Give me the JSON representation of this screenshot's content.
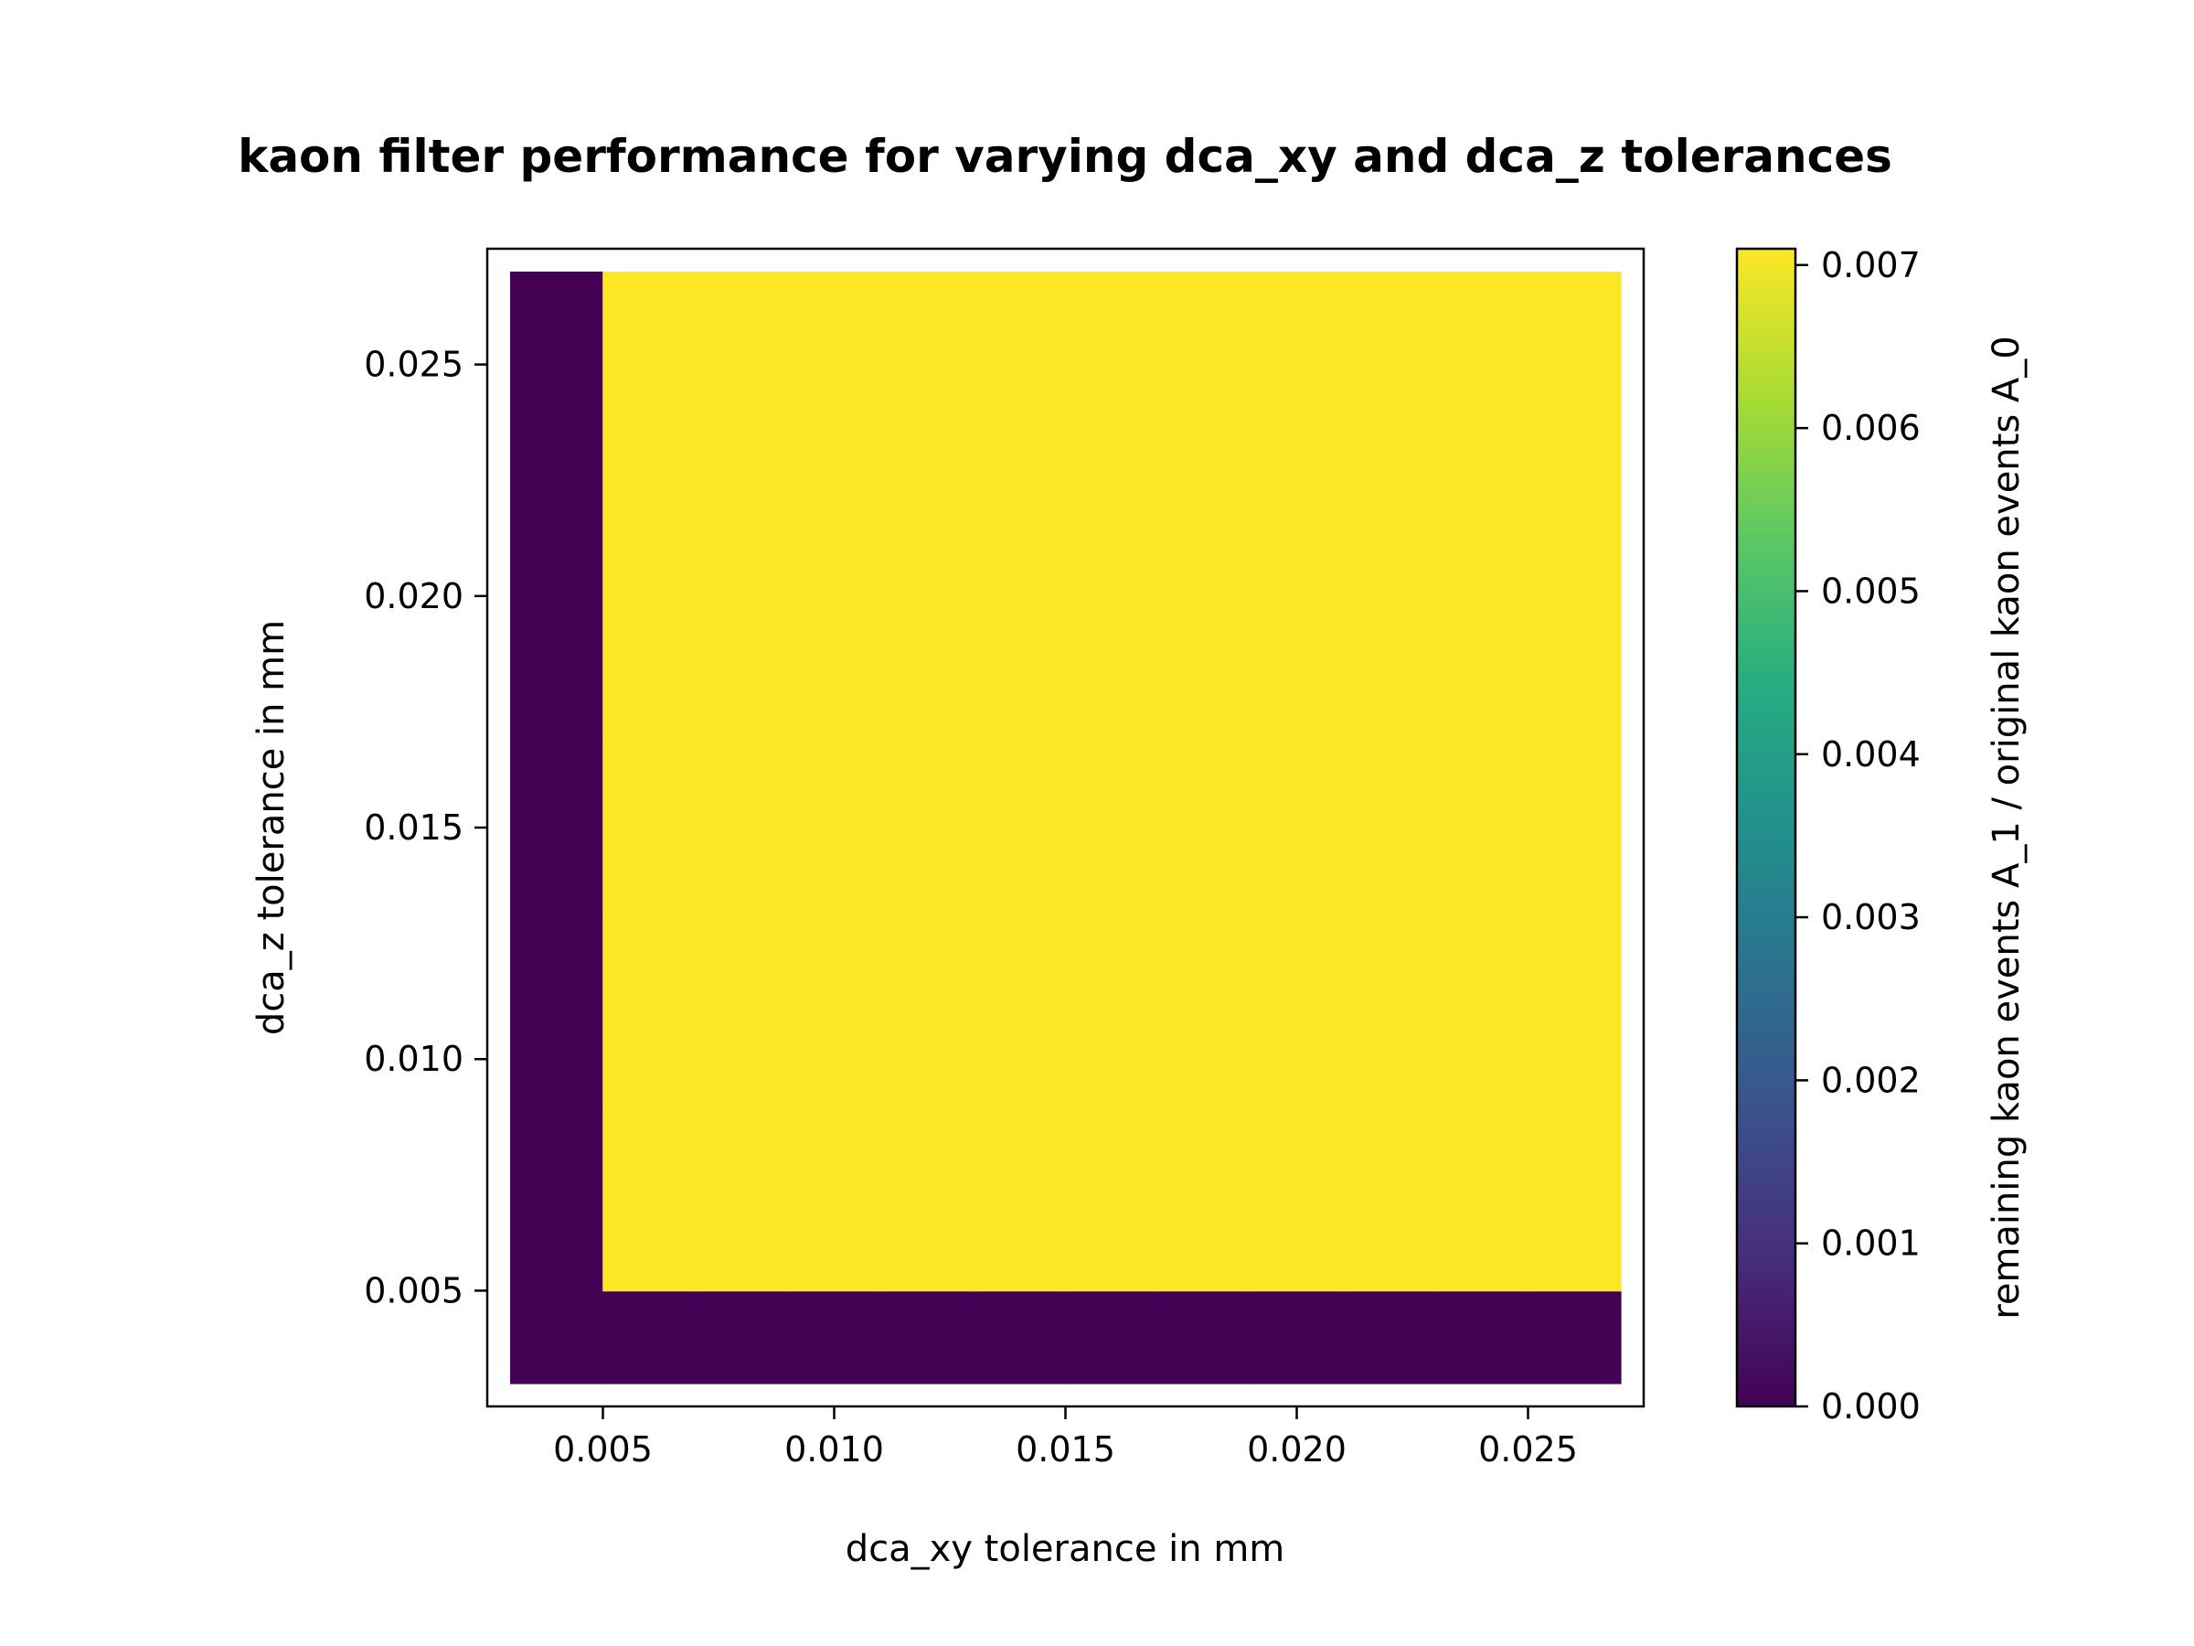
{
  "chart_data": {
    "type": "heatmap",
    "title": "kaon filter performance for varying dca_xy and dca_z tolerances",
    "xlabel": "dca_xy tolerance in mm",
    "ylabel": "dca_z tolerance in mm",
    "colorbar_label": "remaining kaon events A_1 / original kaon events A_0",
    "colormap": "viridis",
    "x_centers": [
      0.004,
      0.006,
      0.008,
      0.01,
      0.012,
      0.014,
      0.016,
      0.018,
      0.02,
      0.022,
      0.024,
      0.026
    ],
    "y_centers": [
      0.004,
      0.006,
      0.008,
      0.01,
      0.012,
      0.014,
      0.016,
      0.018,
      0.02,
      0.022,
      0.024,
      0.026
    ],
    "xlim": [
      0.0025,
      0.0275
    ],
    "ylim": [
      0.0025,
      0.0275
    ],
    "values": [
      [
        0,
        0,
        0,
        0,
        0,
        0,
        0,
        0,
        0,
        0,
        0,
        0
      ],
      [
        0,
        0.0071,
        0.0071,
        0.0071,
        0.0071,
        0.0071,
        0.0071,
        0.0071,
        0.0071,
        0.0071,
        0.0071,
        0.0071
      ],
      [
        0,
        0.0071,
        0.0071,
        0.0071,
        0.0071,
        0.0071,
        0.0071,
        0.0071,
        0.0071,
        0.0071,
        0.0071,
        0.0071
      ],
      [
        0,
        0.0071,
        0.0071,
        0.0071,
        0.0071,
        0.0071,
        0.0071,
        0.0071,
        0.0071,
        0.0071,
        0.0071,
        0.0071
      ],
      [
        0,
        0.0071,
        0.0071,
        0.0071,
        0.0071,
        0.0071,
        0.0071,
        0.0071,
        0.0071,
        0.0071,
        0.0071,
        0.0071
      ],
      [
        0,
        0.0071,
        0.0071,
        0.0071,
        0.0071,
        0.0071,
        0.0071,
        0.0071,
        0.0071,
        0.0071,
        0.0071,
        0.0071
      ],
      [
        0,
        0.0071,
        0.0071,
        0.0071,
        0.0071,
        0.0071,
        0.0071,
        0.0071,
        0.0071,
        0.0071,
        0.0071,
        0.0071
      ],
      [
        0,
        0.0071,
        0.0071,
        0.0071,
        0.0071,
        0.0071,
        0.0071,
        0.0071,
        0.0071,
        0.0071,
        0.0071,
        0.0071
      ],
      [
        0,
        0.0071,
        0.0071,
        0.0071,
        0.0071,
        0.0071,
        0.0071,
        0.0071,
        0.0071,
        0.0071,
        0.0071,
        0.0071
      ],
      [
        0,
        0.0071,
        0.0071,
        0.0071,
        0.0071,
        0.0071,
        0.0071,
        0.0071,
        0.0071,
        0.0071,
        0.0071,
        0.0071
      ],
      [
        0,
        0.0071,
        0.0071,
        0.0071,
        0.0071,
        0.0071,
        0.0071,
        0.0071,
        0.0071,
        0.0071,
        0.0071,
        0.0071
      ],
      [
        0,
        0.0071,
        0.0071,
        0.0071,
        0.0071,
        0.0071,
        0.0071,
        0.0071,
        0.0071,
        0.0071,
        0.0071,
        0.0071
      ]
    ],
    "vmin": 0,
    "vmax": 0.0071,
    "x_ticks": [
      0.005,
      0.01,
      0.015,
      0.02,
      0.025
    ],
    "x_tick_labels": [
      "0.005",
      "0.010",
      "0.015",
      "0.020",
      "0.025"
    ],
    "y_ticks": [
      0.005,
      0.01,
      0.015,
      0.02,
      0.025
    ],
    "y_tick_labels": [
      "0.005",
      "0.010",
      "0.015",
      "0.020",
      "0.025"
    ],
    "colorbar_ticks": [
      0,
      0.001,
      0.002,
      0.003,
      0.004,
      0.005,
      0.006,
      0.007
    ],
    "colorbar_tick_labels": [
      "0.000",
      "0.001",
      "0.002",
      "0.003",
      "0.004",
      "0.005",
      "0.006",
      "0.007"
    ],
    "grid": false
  }
}
